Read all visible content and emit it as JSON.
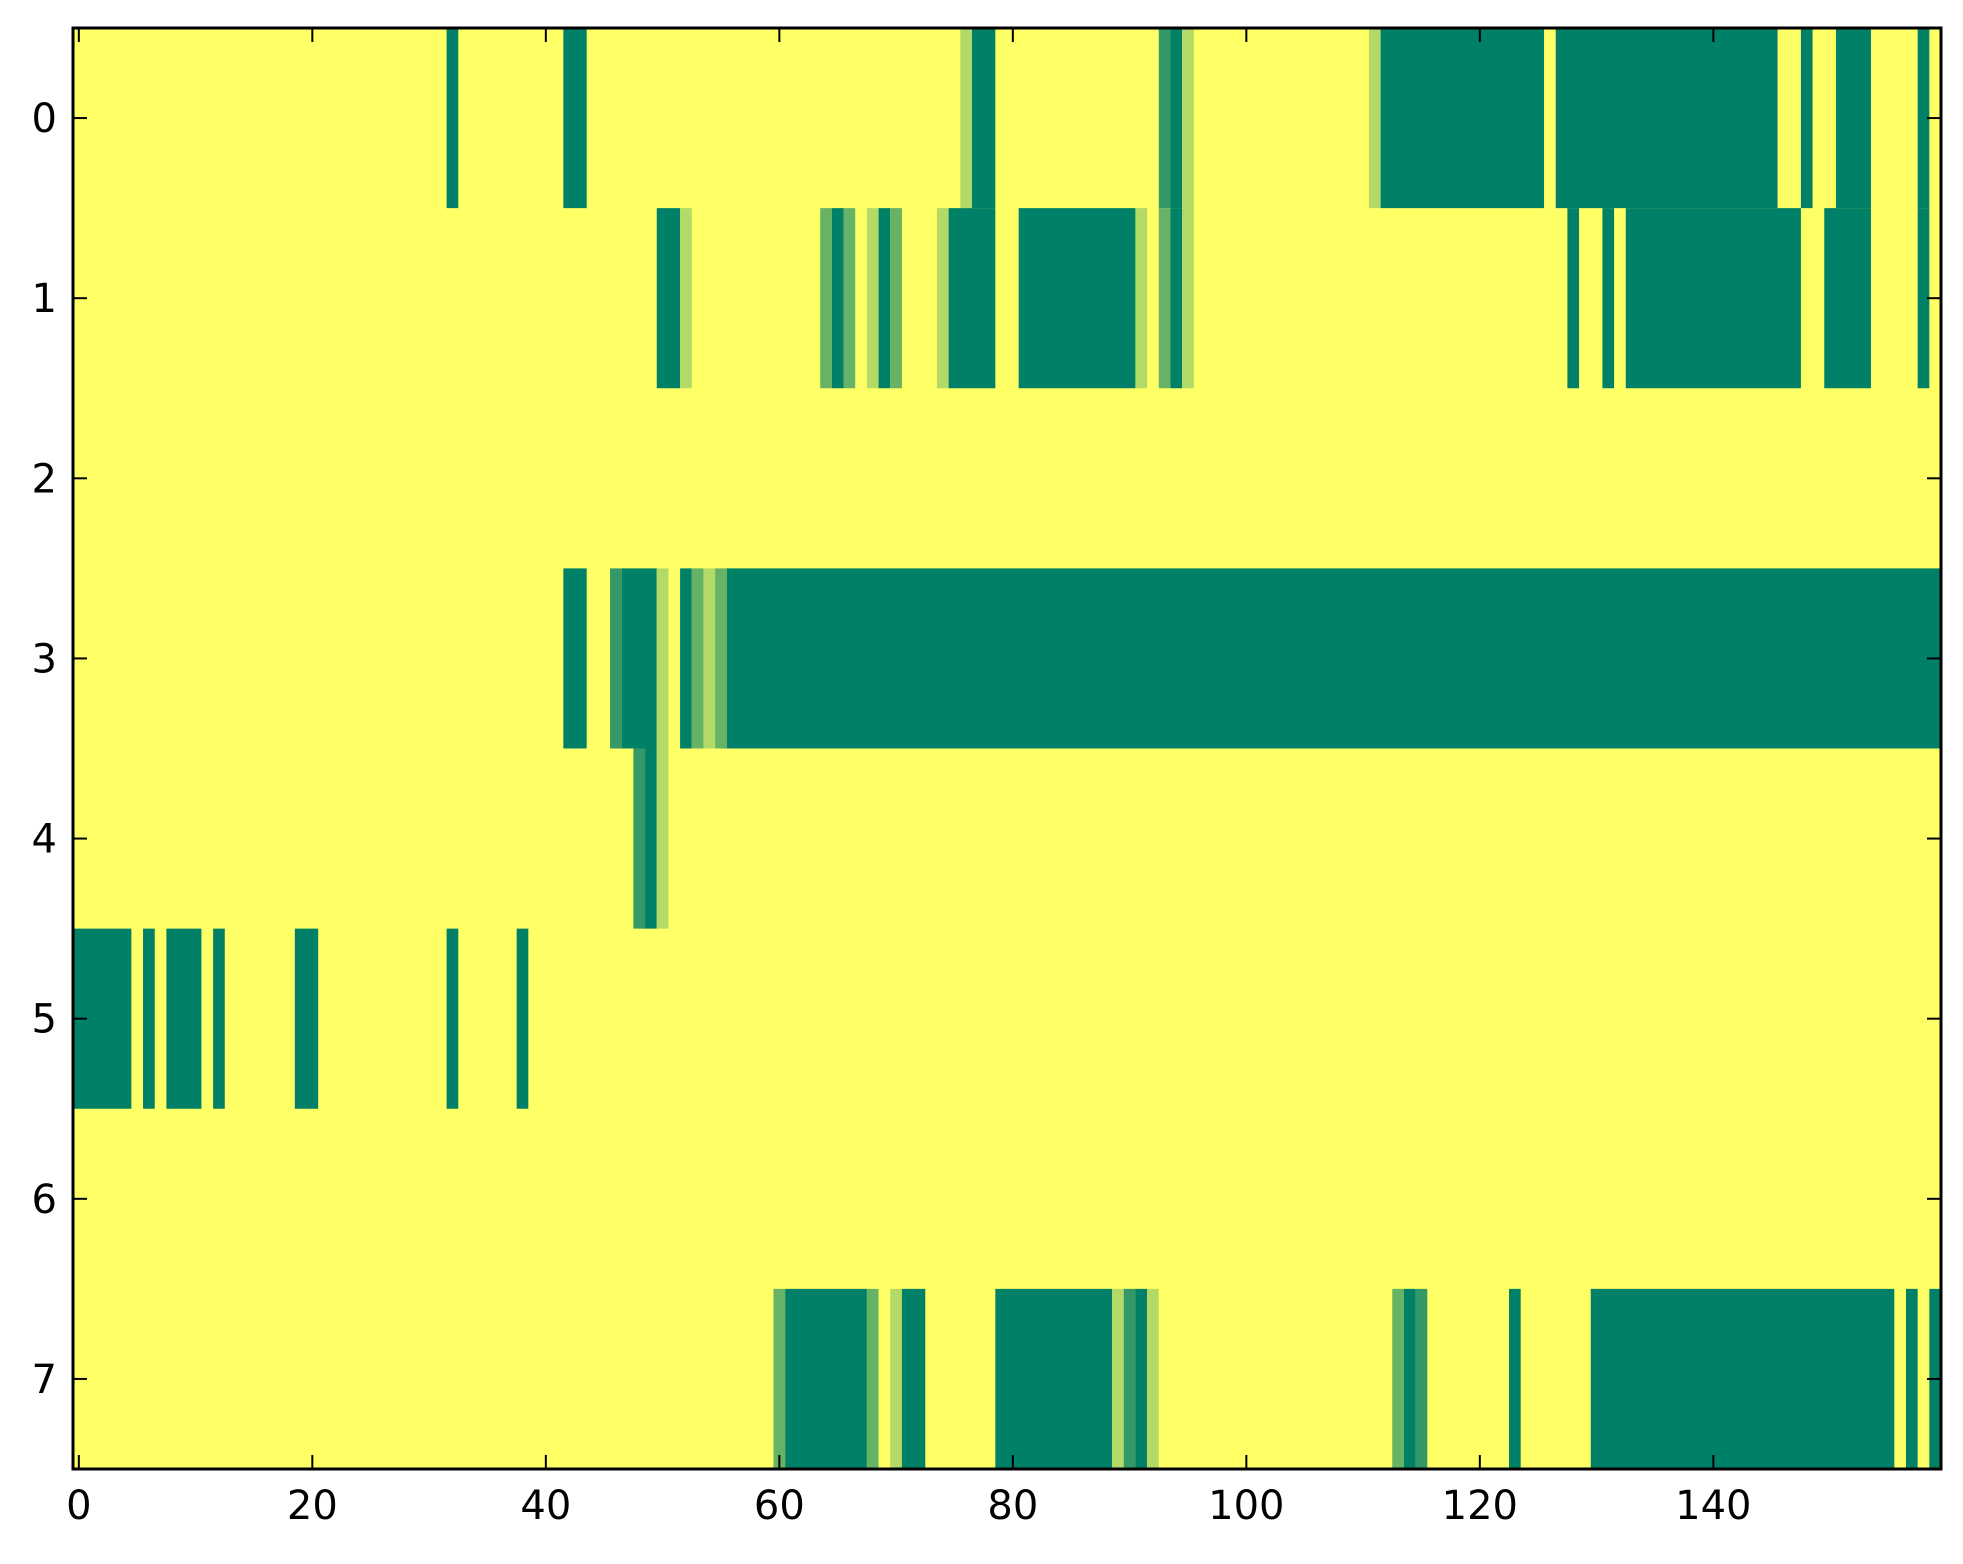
{
  "chart_data": {
    "type": "heatmap",
    "title": "",
    "xlabel": "",
    "ylabel": "",
    "xlim": [
      -0.5,
      159.5
    ],
    "ylim": [
      7.5,
      -0.5
    ],
    "x_ticks": [
      0,
      20,
      40,
      60,
      80,
      100,
      120,
      140
    ],
    "x_tick_labels": [
      "0",
      "20",
      "40",
      "60",
      "80",
      "100",
      "120",
      "140"
    ],
    "y_ticks": [
      0,
      1,
      2,
      3,
      4,
      5,
      6,
      7
    ],
    "y_tick_labels": [
      "0",
      "1",
      "2",
      "3",
      "4",
      "5",
      "6",
      "7"
    ],
    "grid": false,
    "colormap": {
      "0": "#ffff66",
      "0.25": "#b3d966",
      "0.5": "#66b366",
      "0.75": "#339966",
      "1": "#008066"
    },
    "background_value": 0,
    "rows": [
      {
        "row": 0,
        "segments": [
          [
            32,
            32,
            1
          ],
          [
            42,
            43,
            1
          ],
          [
            76,
            76,
            0.25
          ],
          [
            77,
            78,
            1
          ],
          [
            93,
            93,
            0.75
          ],
          [
            94,
            94,
            1
          ],
          [
            95,
            95,
            0.25
          ],
          [
            111,
            111,
            0.25
          ],
          [
            112,
            125,
            1
          ],
          [
            127,
            145,
            1
          ],
          [
            148,
            148,
            1
          ],
          [
            151,
            153,
            1
          ],
          [
            158,
            158,
            1
          ]
        ]
      },
      {
        "row": 1,
        "segments": [
          [
            50,
            51,
            1
          ],
          [
            52,
            52,
            0.25
          ],
          [
            64,
            64,
            0.5
          ],
          [
            65,
            65,
            1
          ],
          [
            66,
            66,
            0.5
          ],
          [
            68,
            68,
            0.25
          ],
          [
            69,
            69,
            1
          ],
          [
            70,
            70,
            0.5
          ],
          [
            74,
            74,
            0.25
          ],
          [
            75,
            78,
            1
          ],
          [
            81,
            90,
            1
          ],
          [
            91,
            91,
            0.25
          ],
          [
            93,
            93,
            0.5
          ],
          [
            94,
            94,
            1
          ],
          [
            95,
            95,
            0.25
          ],
          [
            128,
            128,
            1
          ],
          [
            131,
            131,
            1
          ],
          [
            133,
            147,
            1
          ],
          [
            150,
            153,
            1
          ],
          [
            158,
            158,
            1
          ]
        ]
      },
      {
        "row": 2,
        "segments": []
      },
      {
        "row": 3,
        "segments": [
          [
            42,
            43,
            1
          ],
          [
            46,
            46,
            0.75
          ],
          [
            47,
            49,
            1
          ],
          [
            50,
            50,
            0.25
          ],
          [
            52,
            52,
            1
          ],
          [
            53,
            53,
            0.5
          ],
          [
            54,
            54,
            0.25
          ],
          [
            55,
            55,
            0.5
          ],
          [
            56,
            159,
            1
          ]
        ]
      },
      {
        "row": 4,
        "segments": [
          [
            48,
            48,
            0.75
          ],
          [
            49,
            49,
            1
          ],
          [
            50,
            50,
            0.25
          ]
        ]
      },
      {
        "row": 5,
        "segments": [
          [
            0,
            4,
            1
          ],
          [
            6,
            6,
            1
          ],
          [
            8,
            10,
            1
          ],
          [
            12,
            12,
            1
          ],
          [
            19,
            20,
            1
          ],
          [
            32,
            32,
            1
          ],
          [
            38,
            38,
            1
          ]
        ]
      },
      {
        "row": 6,
        "segments": []
      },
      {
        "row": 7,
        "segments": [
          [
            60,
            60,
            0.5
          ],
          [
            61,
            67,
            1
          ],
          [
            68,
            68,
            0.5
          ],
          [
            70,
            70,
            0.25
          ],
          [
            71,
            72,
            1
          ],
          [
            79,
            88,
            1
          ],
          [
            89,
            89,
            0.25
          ],
          [
            90,
            90,
            0.75
          ],
          [
            91,
            91,
            1
          ],
          [
            92,
            92,
            0.25
          ],
          [
            113,
            113,
            0.5
          ],
          [
            114,
            114,
            1
          ],
          [
            115,
            115,
            0.75
          ],
          [
            123,
            123,
            1
          ],
          [
            130,
            155,
            1
          ],
          [
            157,
            157,
            1
          ],
          [
            159,
            159,
            1
          ]
        ]
      }
    ]
  }
}
